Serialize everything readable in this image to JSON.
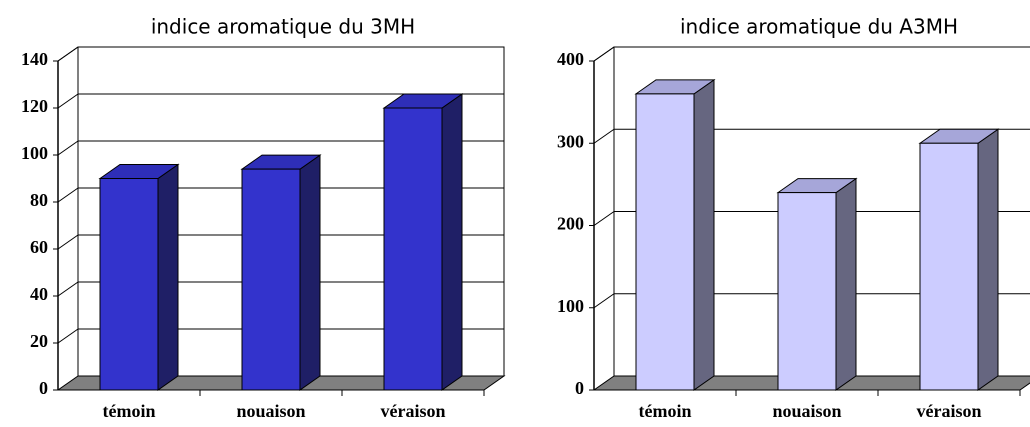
{
  "chart_data": [
    {
      "type": "bar",
      "title": "indice aromatique du 3MH",
      "categories": [
        "témoin",
        "nouaison",
        "véraison"
      ],
      "values": [
        90,
        94,
        120
      ],
      "color": "#3333cc",
      "side_color": "#1f1f66",
      "top_color": "#2e2eb8",
      "ylim": [
        0,
        140
      ],
      "yticks": [
        0,
        20,
        40,
        60,
        80,
        100,
        120,
        140
      ],
      "grid": true
    },
    {
      "type": "bar",
      "title": "indice aromatique du A3MH",
      "categories": [
        "témoin",
        "nouaison",
        "véraison"
      ],
      "values": [
        360,
        240,
        300
      ],
      "color": "#ccccff",
      "side_color": "#666680",
      "top_color": "#a6a6d9",
      "ylim": [
        0,
        400
      ],
      "yticks": [
        0,
        100,
        200,
        300,
        400
      ],
      "grid": true
    }
  ]
}
